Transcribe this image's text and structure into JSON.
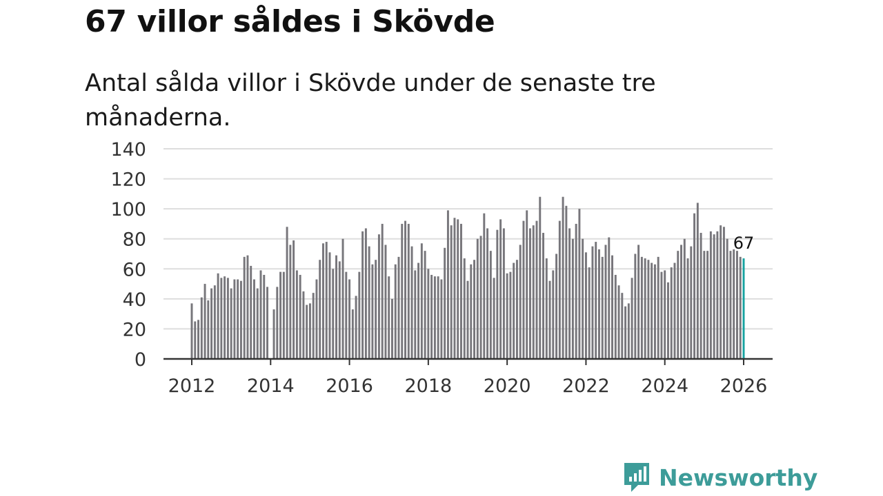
{
  "header": {
    "title": "67 villor såldes i Skövde",
    "subtitle": "Antal sålda villor i Skövde under de senaste tre månaderna."
  },
  "brand": {
    "name": "Newsworthy",
    "color": "#3d9c99"
  },
  "colors": {
    "bar": "#77767b",
    "highlight": "#17a2a0",
    "grid": "#dddddd",
    "axis": "#333333"
  },
  "chart_data": {
    "type": "bar",
    "title": "Antal sålda villor i Skövde under de senaste tre månaderna.",
    "xlabel": "",
    "ylabel": "",
    "ylim": [
      0,
      140
    ],
    "yticks": [
      0,
      20,
      40,
      60,
      80,
      100,
      120,
      140
    ],
    "xlim": [
      2012,
      2026
    ],
    "xticks": [
      2012,
      2014,
      2016,
      2018,
      2020,
      2022,
      2024,
      2026
    ],
    "grid": true,
    "start_year": 2012,
    "months_per_step": 1,
    "values": [
      37,
      25,
      26,
      41,
      50,
      39,
      47,
      49,
      57,
      54,
      55,
      54,
      47,
      53,
      53,
      52,
      68,
      69,
      62,
      53,
      47,
      59,
      56,
      48,
      0,
      33,
      48,
      58,
      58,
      88,
      76,
      79,
      59,
      56,
      45,
      36,
      37,
      44,
      53,
      66,
      77,
      78,
      71,
      60,
      69,
      65,
      80,
      58,
      53,
      33,
      42,
      58,
      85,
      87,
      75,
      63,
      66,
      83,
      90,
      76,
      55,
      40,
      63,
      68,
      90,
      92,
      90,
      75,
      59,
      64,
      77,
      72,
      60,
      56,
      55,
      55,
      53,
      74,
      99,
      89,
      94,
      93,
      90,
      67,
      52,
      63,
      66,
      80,
      82,
      97,
      87,
      72,
      54,
      86,
      93,
      87,
      57,
      58,
      64,
      66,
      76,
      92,
      99,
      87,
      89,
      92,
      108,
      84,
      67,
      52,
      59,
      70,
      92,
      108,
      102,
      87,
      80,
      90,
      100,
      80,
      71,
      61,
      75,
      78,
      73,
      68,
      76,
      81,
      69,
      56,
      49,
      44,
      35,
      37,
      54,
      70,
      76,
      68,
      67,
      66,
      64,
      63,
      68,
      58,
      59,
      51,
      61,
      64,
      72,
      76,
      80,
      67,
      75,
      97,
      104,
      84,
      72,
      72,
      85,
      83,
      85,
      89,
      88,
      80,
      72,
      73,
      72,
      68,
      67
    ],
    "highlight_label": "67"
  }
}
